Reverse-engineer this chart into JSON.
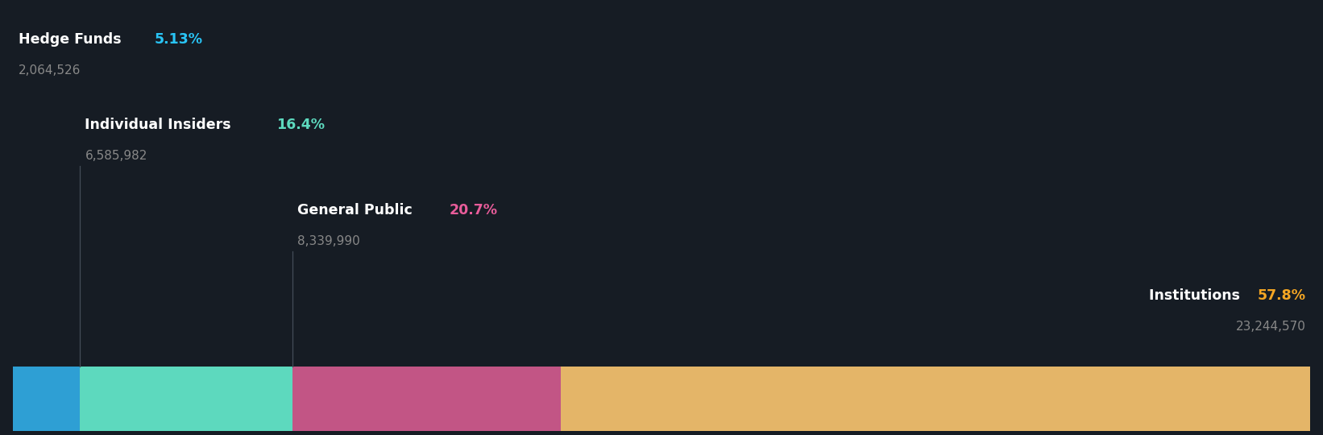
{
  "categories": [
    "Hedge Funds",
    "Individual Insiders",
    "General Public",
    "Institutions"
  ],
  "percentages": [
    5.13,
    16.4,
    20.7,
    57.8
  ],
  "values": [
    "2,064,526",
    "6,585,982",
    "8,339,990",
    "23,244,570"
  ],
  "bar_colors": [
    "#2E9FD4",
    "#5DD9BE",
    "#C25585",
    "#E4B568"
  ],
  "pct_colors": [
    "#29C4F5",
    "#5DD9BE",
    "#E85C9A",
    "#F5A623"
  ],
  "label_color": "#FFFFFF",
  "value_color": "#888888",
  "background_color": "#161C24",
  "figsize": [
    16.42,
    5.4
  ],
  "dpi": 100
}
